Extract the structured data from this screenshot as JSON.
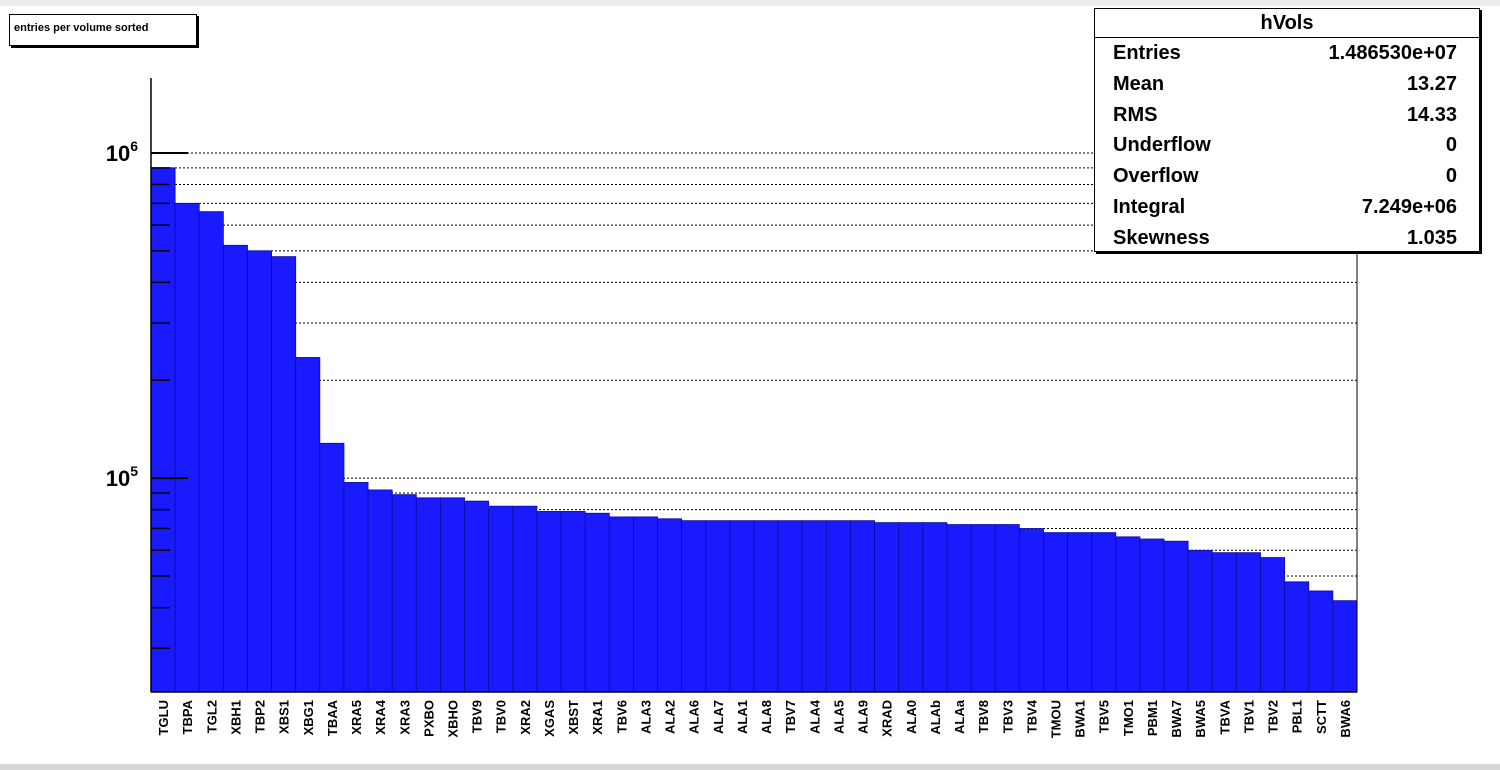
{
  "title_box": {
    "text": "entries per volume sorted"
  },
  "stats": {
    "title": "hVols",
    "rows": [
      {
        "label": "Entries",
        "value": "1.486530e+07"
      },
      {
        "label": "Mean",
        "value": "13.27"
      },
      {
        "label": "RMS",
        "value": "14.33"
      },
      {
        "label": "Underflow",
        "value": "0"
      },
      {
        "label": "Overflow",
        "value": "0"
      },
      {
        "label": "Integral",
        "value": "7.249e+06"
      },
      {
        "label": "Skewness",
        "value": "1.035"
      }
    ]
  },
  "colors": {
    "bar": "#1a1aff",
    "bar_edge": "#0c0c9a",
    "background": "#ffffff",
    "axis": "#000000"
  },
  "chart_data": {
    "type": "bar",
    "title": "",
    "xlabel": "",
    "ylabel": "",
    "y_scale": "log",
    "ylim": [
      22000,
      1700000
    ],
    "y_major_ticks": [
      {
        "value": 100000,
        "base": "10",
        "exp": "5"
      },
      {
        "value": 1000000,
        "base": "10",
        "exp": "6"
      }
    ],
    "grid": {
      "y": true,
      "x": false
    },
    "categories": [
      "TGLU",
      "TBPA",
      "TGL2",
      "XBH1",
      "TBP2",
      "XBS1",
      "XBG1",
      "TBAA",
      "XRA5",
      "XRA4",
      "XRA3",
      "PXBO",
      "XBHO",
      "TBV9",
      "TBV0",
      "XRA2",
      "XGAS",
      "XBST",
      "XRA1",
      "TBV6",
      "ALA3",
      "ALA2",
      "ALA6",
      "ALA7",
      "ALA1",
      "ALA8",
      "TBV7",
      "ALA4",
      "ALA5",
      "ALA9",
      "XRAD",
      "ALA0",
      "ALAb",
      "ALAa",
      "TBV8",
      "TBV3",
      "TBV4",
      "TMOU",
      "BWA1",
      "TBV5",
      "TMO1",
      "PBM1",
      "BWA7",
      "BWA5",
      "TBVA",
      "TBV1",
      "TBV2",
      "PBL1",
      "SCTT",
      "BWA6"
    ],
    "values": [
      900000,
      700000,
      660000,
      520000,
      500000,
      480000,
      235000,
      128000,
      97000,
      92000,
      89000,
      87000,
      87000,
      85000,
      82000,
      82000,
      79000,
      79000,
      78000,
      76000,
      76000,
      75000,
      74000,
      74000,
      74000,
      74000,
      74000,
      74000,
      74000,
      74000,
      73000,
      73000,
      73000,
      72000,
      72000,
      72000,
      70000,
      68000,
      68000,
      68000,
      66000,
      65000,
      64000,
      60000,
      59000,
      59000,
      57000,
      48000,
      45000,
      42000
    ]
  }
}
